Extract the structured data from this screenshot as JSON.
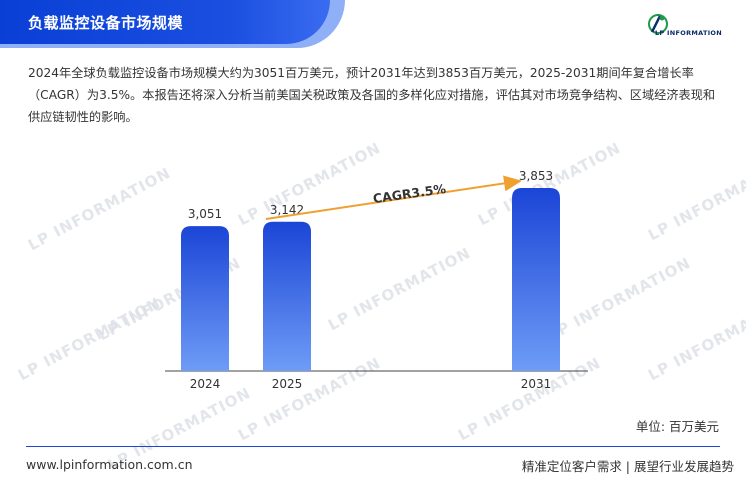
{
  "header": {
    "title": "负载监控设备市场规模"
  },
  "logo": {
    "text": "LP INFORMATION"
  },
  "description": "2024年全球负载监控设备市场规模大约为3051百万美元，预计2031年达到3853百万美元，2025-2031期间年复合增长率（CAGR）为3.5%。本报告还将深入分析当前美国关税政策及各国的多样化应对措施，评估其对市场竞争结构、区域经济表现和供应链韧性的影响。",
  "watermark": "LP INFORMATION",
  "chart_data": {
    "type": "bar",
    "categories": [
      "2024",
      "2025",
      "2031"
    ],
    "values": [
      3051,
      3142,
      3853
    ],
    "value_labels": [
      "3,051",
      "3,142",
      "3,853"
    ],
    "annotation": "CAGR3.5%",
    "unit": "单位: 百万美元",
    "title": "",
    "xlabel": "",
    "ylabel": ""
  },
  "footer": {
    "url": "www.lpinformation.com.cn",
    "slogan": "精准定位客户需求 | 展望行业发展趋势"
  },
  "colors": {
    "accent": "#1a47d9",
    "bar_top": "#1b45d6",
    "bar_bottom": "#6e9cf6",
    "arrow": "#f0a030"
  }
}
